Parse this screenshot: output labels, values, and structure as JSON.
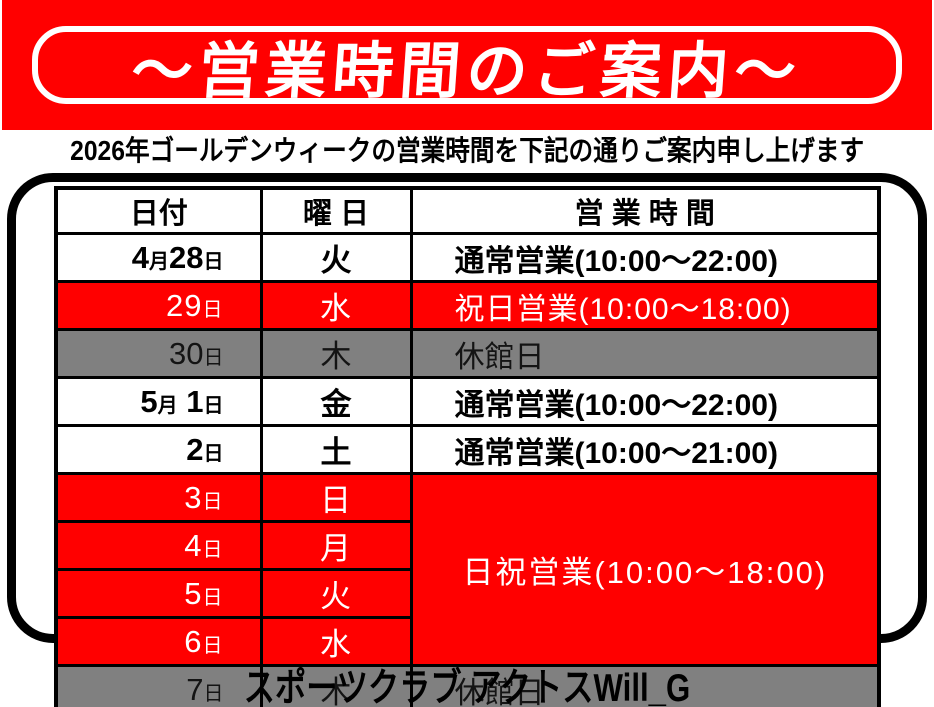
{
  "banner": {
    "title": "～営業時間のご案内～",
    "bg_color": "#FF0000",
    "border_color": "#FFFFFF",
    "text_color": "#FFFFFF"
  },
  "subtitle": "2026年ゴールデンウィークの営業時間を下記の通りご案内申し上げます",
  "colors": {
    "red": "#FF0000",
    "gray": "#808080",
    "black": "#000000",
    "white": "#FFFFFF"
  },
  "table": {
    "columns": [
      "日付",
      "曜 日",
      "営 業 時 間"
    ],
    "rows": [
      {
        "style": "white",
        "date_parts": [
          {
            "text": "4"
          },
          {
            "text": "月",
            "unit": true
          },
          {
            "text": "28"
          },
          {
            "text": "日",
            "unit": true
          }
        ],
        "day": "火",
        "hours": "通常営業(10:00～22:00)"
      },
      {
        "style": "red",
        "date_parts": [
          {
            "text": "29"
          },
          {
            "text": "日",
            "unit": true
          }
        ],
        "day": "水",
        "hours": "祝日営業(10:00～18:00)"
      },
      {
        "style": "gray",
        "date_parts": [
          {
            "text": "30"
          },
          {
            "text": "日",
            "unit": true
          }
        ],
        "day": "木",
        "hours": "休館日"
      },
      {
        "style": "white",
        "date_parts": [
          {
            "text": "5"
          },
          {
            "text": "月",
            "unit": true
          },
          {
            "text": " 1"
          },
          {
            "text": "日",
            "unit": true
          }
        ],
        "day": "金",
        "hours": "通常営業(10:00～22:00)"
      },
      {
        "style": "white",
        "date_parts": [
          {
            "text": "2"
          },
          {
            "text": "日",
            "unit": true
          }
        ],
        "day": "土",
        "hours": "通常営業(10:00～21:00)"
      },
      {
        "style": "red",
        "date_parts": [
          {
            "text": "3"
          },
          {
            "text": "日",
            "unit": true
          }
        ],
        "day": "日",
        "hours": "日祝営業(10:00～18:00)",
        "hours_rowspan": 4,
        "hours_merged": true
      },
      {
        "style": "red",
        "date_parts": [
          {
            "text": "4"
          },
          {
            "text": "日",
            "unit": true
          }
        ],
        "day": "月"
      },
      {
        "style": "red",
        "date_parts": [
          {
            "text": "5"
          },
          {
            "text": "日",
            "unit": true
          }
        ],
        "day": "火"
      },
      {
        "style": "red",
        "date_parts": [
          {
            "text": "6"
          },
          {
            "text": "日",
            "unit": true
          }
        ],
        "day": "水"
      },
      {
        "style": "gray",
        "date_parts": [
          {
            "text": "7"
          },
          {
            "text": "日",
            "unit": true
          }
        ],
        "day": "木",
        "hours": "休館日"
      }
    ]
  },
  "footer": {
    "brand": "スポーツクラブ  アクトスWill_G"
  }
}
